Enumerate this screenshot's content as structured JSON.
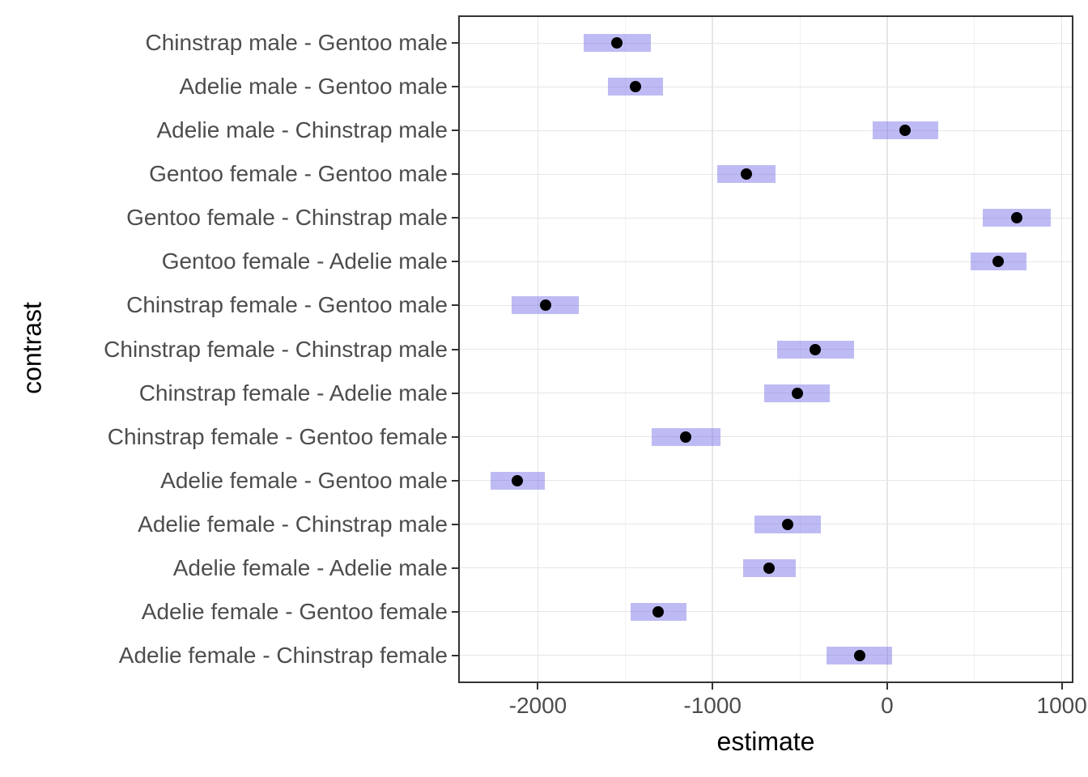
{
  "chart_data": {
    "type": "pointrange",
    "xlabel": "estimate",
    "ylabel": "contrast",
    "x_domain": [
      -2447,
      1057
    ],
    "x_major_ticks": [
      -2000,
      -1000,
      0,
      1000
    ],
    "x_tick_labels": [
      "-2000",
      "-1000",
      "0",
      "1000"
    ],
    "x_minor_ticks": [
      -1500,
      -500,
      500
    ],
    "grid": "major-and-minor",
    "legend": "none",
    "rows": [
      {
        "contrast": "Chinstrap male - Gentoo male",
        "estimate": -1545.9,
        "conf_low": -1740,
        "conf_high": -1352
      },
      {
        "contrast": "Adelie male - Gentoo male",
        "estimate": -1441.3,
        "conf_low": -1598,
        "conf_high": -1284
      },
      {
        "contrast": "Adelie male - Chinstrap male",
        "estimate": 104.5,
        "conf_low": -84,
        "conf_high": 293
      },
      {
        "contrast": "Gentoo female - Gentoo male",
        "estimate": -805.1,
        "conf_low": -971,
        "conf_high": -639
      },
      {
        "contrast": "Gentoo female - Chinstrap male",
        "estimate": 740.8,
        "conf_low": 545,
        "conf_high": 937
      },
      {
        "contrast": "Gentoo female - Adelie male",
        "estimate": 636.2,
        "conf_low": 476,
        "conf_high": 796
      },
      {
        "contrast": "Chinstrap female - Gentoo male",
        "estimate": -1957.6,
        "conf_low": -2152,
        "conf_high": -1764
      },
      {
        "contrast": "Chinstrap female - Chinstrap male",
        "estimate": -411.8,
        "conf_low": -632,
        "conf_high": -192
      },
      {
        "contrast": "Chinstrap female - Adelie male",
        "estimate": -516.3,
        "conf_low": -704,
        "conf_high": -328
      },
      {
        "contrast": "Chinstrap female - Gentoo female",
        "estimate": -1152.5,
        "conf_low": -1349,
        "conf_high": -956
      },
      {
        "contrast": "Adelie female - Gentoo male",
        "estimate": -2116.0,
        "conf_low": -2273,
        "conf_high": -1959
      },
      {
        "contrast": "Adelie female - Chinstrap male",
        "estimate": -570.1,
        "conf_low": -758,
        "conf_high": -382
      },
      {
        "contrast": "Adelie female - Adelie male",
        "estimate": -674.7,
        "conf_low": -825,
        "conf_high": -525
      },
      {
        "contrast": "Adelie female - Gentoo female",
        "estimate": -1310.9,
        "conf_low": -1471,
        "conf_high": -1151
      },
      {
        "contrast": "Adelie female - Chinstrap female",
        "estimate": -158.4,
        "conf_low": -346,
        "conf_high": 29
      }
    ],
    "colors": {
      "ci_bar": "rgba(110,104,230,0.45)",
      "point": "#000000",
      "grid_major": "#e6e6e6",
      "grid_minor": "#f2f2f2",
      "panel_border": "#333333",
      "axis_text": "#4d4d4d",
      "axis_title": "#000000",
      "background": "#ffffff"
    }
  }
}
